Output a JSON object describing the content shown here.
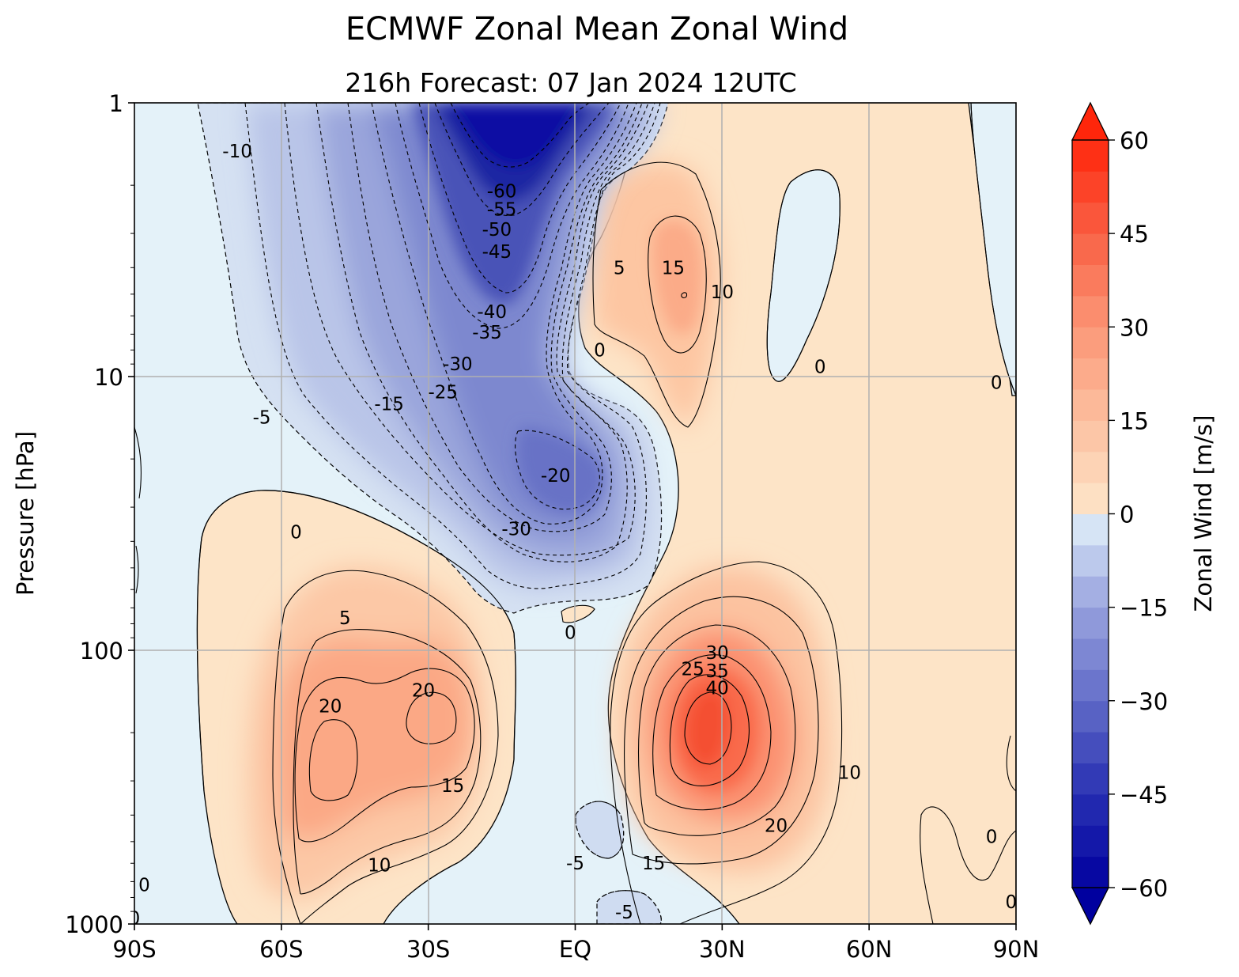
{
  "chart_data": {
    "type": "contour",
    "title": "ECMWF Zonal Mean Zonal Wind",
    "subtitle": "216h  Forecast:  07 Jan 2024  12UTC",
    "xlabel": "",
    "ylabel": "Pressure [hPa]",
    "x_ticks": [
      "90S",
      "60S",
      "30S",
      "EQ",
      "30N",
      "60N",
      "90N"
    ],
    "x_tick_values": [
      -90,
      -60,
      -30,
      0,
      30,
      60,
      90
    ],
    "xlim": [
      -90,
      90
    ],
    "y_ticks": [
      "1",
      "10",
      "100",
      "1000"
    ],
    "y_tick_values": [
      1,
      10,
      100,
      1000
    ],
    "ylim": [
      1000,
      1
    ],
    "y_scale": "log",
    "grid": true,
    "colorbar": {
      "label": "Zonal Wind [m/s]",
      "ticks": [
        "60",
        "45",
        "30",
        "15",
        "0",
        "−15",
        "−30",
        "−45",
        "−60"
      ],
      "tick_values": [
        60,
        45,
        30,
        15,
        0,
        -15,
        -30,
        -45,
        -60
      ],
      "range": [
        -60,
        60
      ],
      "step": 5,
      "extend": "both"
    },
    "contour_labels": [
      {
        "text": "-10",
        "lat": -69,
        "p": 1.5
      },
      {
        "text": "-60",
        "lat": -15,
        "p": 2.1
      },
      {
        "text": "-55",
        "lat": -15,
        "p": 2.45
      },
      {
        "text": "-50",
        "lat": -16,
        "p": 2.9
      },
      {
        "text": "-45",
        "lat": -16,
        "p": 3.5
      },
      {
        "text": "-40",
        "lat": -17,
        "p": 5.8
      },
      {
        "text": "-35",
        "lat": -18,
        "p": 6.9
      },
      {
        "text": "-30",
        "lat": -24,
        "p": 9.0
      },
      {
        "text": "-25",
        "lat": -27,
        "p": 11.4
      },
      {
        "text": "-15",
        "lat": -38,
        "p": 12.6
      },
      {
        "text": "-5",
        "lat": -64,
        "p": 14.1
      },
      {
        "text": "-20",
        "lat": -4,
        "p": 23
      },
      {
        "text": "-30",
        "lat": -12,
        "p": 36
      },
      {
        "text": "5",
        "lat": 9,
        "p": 4.0
      },
      {
        "text": "15",
        "lat": 20,
        "p": 4.0
      },
      {
        "text": "10",
        "lat": 30,
        "p": 4.9
      },
      {
        "text": "0",
        "lat": 5,
        "p": 8.0
      },
      {
        "text": "0",
        "lat": 50,
        "p": 9.2
      },
      {
        "text": "0",
        "lat": 86,
        "p": 10.5
      },
      {
        "text": "0",
        "lat": -57,
        "p": 37
      },
      {
        "text": "5",
        "lat": -47,
        "p": 76
      },
      {
        "text": "0",
        "lat": -1,
        "p": 86
      },
      {
        "text": "30",
        "lat": 29,
        "p": 102
      },
      {
        "text": "25",
        "lat": 24,
        "p": 117
      },
      {
        "text": "35",
        "lat": 29,
        "p": 119
      },
      {
        "text": "40",
        "lat": 29,
        "p": 137
      },
      {
        "text": "20",
        "lat": -50,
        "p": 160
      },
      {
        "text": "20",
        "lat": -31,
        "p": 140
      },
      {
        "text": "15",
        "lat": -25,
        "p": 312
      },
      {
        "text": "10",
        "lat": -40,
        "p": 610
      },
      {
        "text": "10",
        "lat": 56,
        "p": 280
      },
      {
        "text": "20",
        "lat": 41,
        "p": 436
      },
      {
        "text": "15",
        "lat": 16,
        "p": 600
      },
      {
        "text": "-5",
        "lat": 0,
        "p": 600
      },
      {
        "text": "-5",
        "lat": 10,
        "p": 905
      },
      {
        "text": "0",
        "lat": -88,
        "p": 720
      },
      {
        "text": "0",
        "lat": -90,
        "p": 950
      },
      {
        "text": "0",
        "lat": 85,
        "p": 480
      },
      {
        "text": "0",
        "lat": 89,
        "p": 830
      }
    ]
  }
}
